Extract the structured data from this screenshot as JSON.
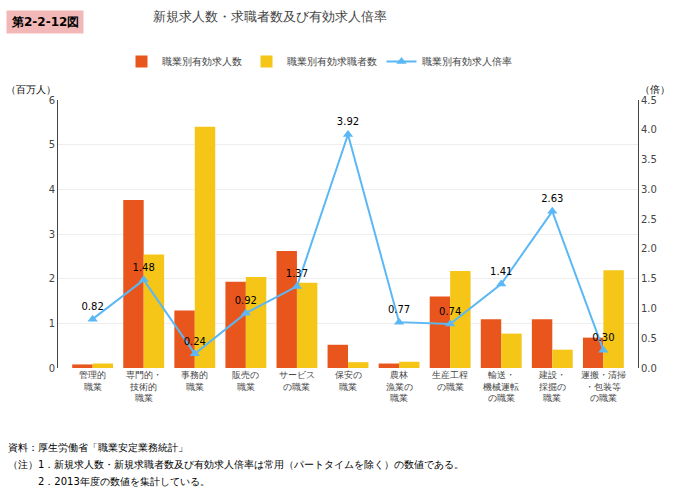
{
  "chart_data": {
    "type": "bar",
    "title": "新規求人数・求職者数及び有効求人倍率",
    "annotations": [
      {
        "text": "第2-2-12図",
        "color": "#F2B8B8"
      },
      {
        "text": "資料：厚生労働省「職業安定業務統計」"
      },
      {
        "text": "（注）1．新規求人数・新規求職者数及び有効求人倍率は常用（パートタイムを除く）の数値である。"
      },
      {
        "text": "　　　2．2013年度の数値を集計している。"
      }
    ],
    "ylabel": "（百万人）",
    "y2label": "（倍）",
    "categories": [
      "管理的\n職業",
      "専門的・\n技術的\n職業",
      "事務的\n職業",
      "販売の\n職業",
      "サービス\nの職業",
      "保安の\n職業",
      "農林\n漁業の\n職業",
      "生産工程\nの職業",
      "輸送・\n機械運転\nの職業",
      "建設・\n採掘の\n職業",
      "運搬・清掃\n・包装等\nの職業"
    ],
    "series": [
      {
        "name": "職業別有効求人数",
        "type": "bar",
        "color": "#E8561E",
        "values": [
          0.08,
          3.76,
          1.29,
          1.93,
          2.62,
          0.52,
          0.1,
          1.6,
          1.09,
          1.09,
          0.68
        ]
      },
      {
        "name": "職業別有効求職者数",
        "type": "bar",
        "color": "#F5C518",
        "values": [
          0.1,
          2.54,
          5.4,
          2.04,
          1.91,
          0.13,
          0.14,
          2.17,
          0.77,
          0.41,
          2.19
        ]
      },
      {
        "name": "職業別有効求人倍率",
        "type": "line",
        "axis": "y2",
        "color": "#5BB8F5",
        "marker": "triangle-up",
        "data_labels": true,
        "values": [
          0.82,
          1.48,
          0.24,
          0.92,
          1.37,
          3.92,
          0.77,
          0.74,
          1.41,
          2.63,
          0.3
        ],
        "value_labels": [
          "0.82",
          "1.48",
          "0.24",
          "0.92",
          "1.37",
          "3.92",
          "0.77",
          "0.74",
          "1.41",
          "2.63",
          "0.30"
        ]
      }
    ],
    "ylim": [
      0,
      6
    ],
    "yticks": [
      0,
      1,
      2,
      3,
      4,
      5,
      6
    ],
    "y2lim": [
      0,
      4.5
    ],
    "y2ticks": [
      {
        "value": 0,
        "label": "0.0"
      },
      0.5,
      {
        "value": 1,
        "label": "1.0"
      },
      1.5,
      {
        "value": 2,
        "label": "2.0"
      },
      2.5,
      {
        "value": 3,
        "label": "3.0"
      },
      3.5,
      {
        "value": 4,
        "label": "4.0"
      },
      4.5
    ],
    "grid": true,
    "legend": "top"
  }
}
